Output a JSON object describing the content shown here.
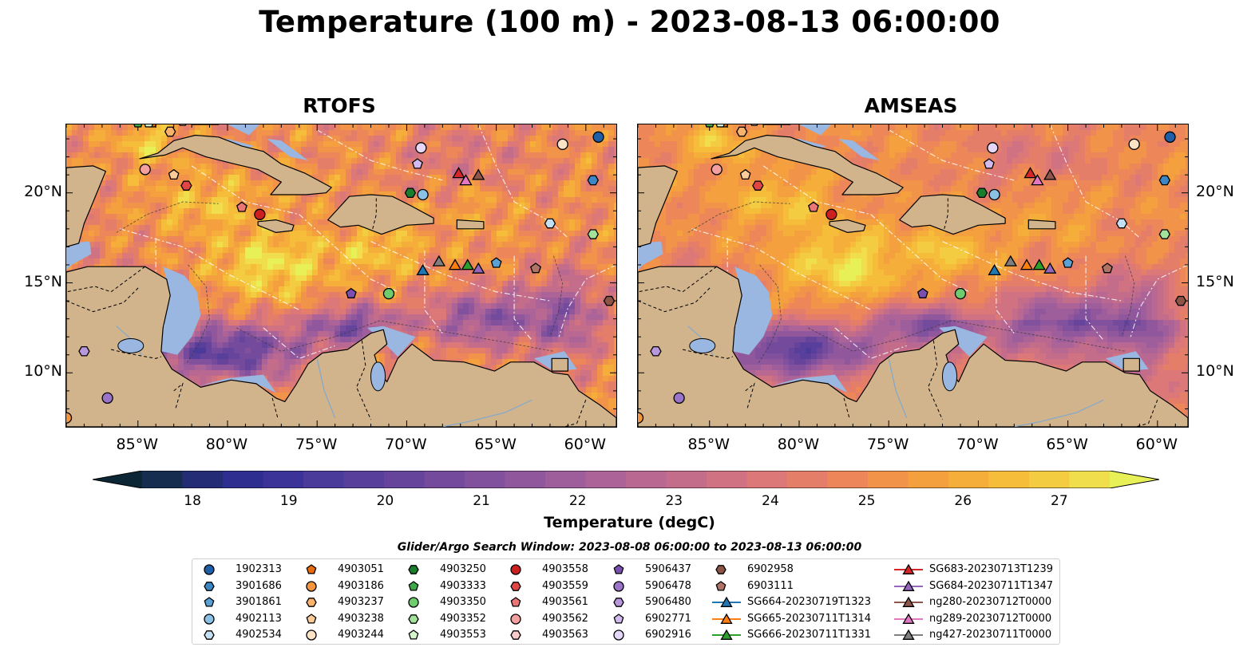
{
  "title": "Temperature (100 m) - 2023-08-13 06:00:00",
  "panels": [
    {
      "id": "rtofs",
      "title": "RTOFS"
    },
    {
      "id": "amseas",
      "title": "AMSEAS"
    }
  ],
  "axes": {
    "lon_labels": [
      "85°W",
      "80°W",
      "75°W",
      "70°W",
      "65°W",
      "60°W"
    ],
    "lat_labels": [
      "20°N",
      "15°N",
      "10°N"
    ]
  },
  "colorbar": {
    "label": "Temperature (degC)",
    "ticks": [
      "18",
      "19",
      "20",
      "21",
      "22",
      "23",
      "24",
      "25",
      "26",
      "27"
    ],
    "min": 17.5,
    "max": 27.5,
    "colors": [
      "#0c2636",
      "#172d4f",
      "#232c75",
      "#2e2e90",
      "#3b3397",
      "#4a3b9a",
      "#583f9c",
      "#66449c",
      "#744a9c",
      "#82519d",
      "#90579c",
      "#9e5e9b",
      "#ac6397",
      "#b96892",
      "#c46d8a",
      "#d07281",
      "#dc7877",
      "#e57e69",
      "#ed875a",
      "#f2934a",
      "#f5a03f",
      "#f6ae3a",
      "#f6bd3b",
      "#f4cc42",
      "#f0de4d",
      "#e8f057"
    ]
  },
  "legend_title": "Glider/Argo Search Window: 2023-08-08 06:00:00 to 2023-08-13 06:00:00",
  "legend_items": [
    {
      "label": "1902313",
      "marker": "circle",
      "color": "#1f5fa8"
    },
    {
      "label": "3901686",
      "marker": "hexagon",
      "color": "#3c86c6"
    },
    {
      "label": "3901861",
      "marker": "pentagon",
      "color": "#5aa1d6"
    },
    {
      "label": "4902113",
      "marker": "circle",
      "color": "#8cc1e6"
    },
    {
      "label": "4902534",
      "marker": "hexagon",
      "color": "#c5e0f3"
    },
    {
      "label": "4903051",
      "marker": "pentagon",
      "color": "#e86b0c"
    },
    {
      "label": "4903186",
      "marker": "circle",
      "color": "#f5963e"
    },
    {
      "label": "4903237",
      "marker": "hexagon",
      "color": "#f8b26b"
    },
    {
      "label": "4903238",
      "marker": "pentagon",
      "color": "#fbcb98"
    },
    {
      "label": "4903244",
      "marker": "circle",
      "color": "#fde3c6"
    },
    {
      "label": "4903250",
      "marker": "hexagon",
      "color": "#1a7d2c"
    },
    {
      "label": "4903333",
      "marker": "pentagon",
      "color": "#3ea84a"
    },
    {
      "label": "4903350",
      "marker": "circle",
      "color": "#6fcc6c"
    },
    {
      "label": "4903352",
      "marker": "hexagon",
      "color": "#a3e29a"
    },
    {
      "label": "4903553",
      "marker": "pentagon",
      "color": "#d3f4cc"
    },
    {
      "label": "4903558",
      "marker": "circle",
      "color": "#cc1f1f"
    },
    {
      "label": "4903559",
      "marker": "hexagon",
      "color": "#e04646"
    },
    {
      "label": "4903561",
      "marker": "pentagon",
      "color": "#ec7575"
    },
    {
      "label": "4903562",
      "marker": "circle",
      "color": "#f5a0a0"
    },
    {
      "label": "4903563",
      "marker": "hexagon",
      "color": "#fbcaca"
    },
    {
      "label": "5906437",
      "marker": "pentagon",
      "color": "#7b4fb0"
    },
    {
      "label": "5906478",
      "marker": "circle",
      "color": "#9a74c8"
    },
    {
      "label": "5906480",
      "marker": "hexagon",
      "color": "#b897dc"
    },
    {
      "label": "6902771",
      "marker": "pentagon",
      "color": "#d3baee"
    },
    {
      "label": "6902916",
      "marker": "circle",
      "color": "#e6d6f8"
    },
    {
      "label": "6902958",
      "marker": "hexagon",
      "color": "#8c5347"
    },
    {
      "label": "6903111",
      "marker": "pentagon",
      "color": "#b07466"
    },
    {
      "label": "SG664-20230719T1323",
      "marker": "triangle",
      "color": "#1f77b4",
      "line": true
    },
    {
      "label": "SG665-20230711T1314",
      "marker": "triangle",
      "color": "#ff7f0e",
      "line": true
    },
    {
      "label": "SG666-20230711T1331",
      "marker": "triangle",
      "color": "#2ca02c",
      "line": true
    },
    {
      "label": "SG683-20230713T1239",
      "marker": "triangle",
      "color": "#d62728",
      "line": true
    },
    {
      "label": "SG684-20230711T1347",
      "marker": "triangle",
      "color": "#9467bd",
      "line": true
    },
    {
      "label": "ng280-20230712T0000",
      "marker": "triangle",
      "color": "#8c564b",
      "line": true
    },
    {
      "label": "ng289-20230712T0000",
      "marker": "triangle",
      "color": "#e377c2",
      "line": true
    },
    {
      "label": "ng427-20230711T0000",
      "marker": "triangle",
      "color": "#7f7f7f",
      "line": true
    }
  ],
  "observations": [
    {
      "id": "1902313",
      "lon": -59.3,
      "lat": 23.1
    },
    {
      "id": "3901686",
      "lon": -59.6,
      "lat": 20.7
    },
    {
      "id": "4902113",
      "lon": -69.1,
      "lat": 19.9
    },
    {
      "id": "4902534",
      "lon": -62.0,
      "lat": 18.3
    },
    {
      "id": "3901861",
      "lon": -65.0,
      "lat": 16.1
    },
    {
      "id": "4903051",
      "lon": -84.2,
      "lat": 23.9
    },
    {
      "id": "4903186",
      "lon": -89.0,
      "lat": 7.5
    },
    {
      "id": "4903237",
      "lon": -83.2,
      "lat": 23.4
    },
    {
      "id": "4903238",
      "lon": -83.0,
      "lat": 21.0
    },
    {
      "id": "4903244",
      "lon": -61.3,
      "lat": 22.7
    },
    {
      "id": "4903250",
      "lon": -69.8,
      "lat": 20.0
    },
    {
      "id": "4903333",
      "lon": -85.0,
      "lat": 23.9
    },
    {
      "id": "4903350",
      "lon": -71.0,
      "lat": 14.4
    },
    {
      "id": "4903352",
      "lon": -59.6,
      "lat": 17.7
    },
    {
      "id": "4903553",
      "lon": -84.4,
      "lat": 23.9
    },
    {
      "id": "4903558",
      "lon": -78.2,
      "lat": 18.8
    },
    {
      "id": "4903559",
      "lon": -82.3,
      "lat": 20.4
    },
    {
      "id": "4903561",
      "lon": -79.2,
      "lat": 19.2
    },
    {
      "id": "4903562",
      "lon": -84.6,
      "lat": 21.3
    },
    {
      "id": "4903563",
      "lon": -82.5,
      "lat": 24.0
    },
    {
      "id": "5906437",
      "lon": -73.1,
      "lat": 14.4
    },
    {
      "id": "5906478",
      "lon": -86.7,
      "lat": 8.6
    },
    {
      "id": "5906480",
      "lon": -88.0,
      "lat": 11.2
    },
    {
      "id": "6902771",
      "lon": -69.4,
      "lat": 21.6
    },
    {
      "id": "6902916",
      "lon": -69.2,
      "lat": 22.5
    },
    {
      "id": "6902958",
      "lon": -58.7,
      "lat": 14.0
    },
    {
      "id": "6903111",
      "lon": -62.8,
      "lat": 15.8
    },
    {
      "id": "SG664-20230719T1323",
      "lon": -69.1,
      "lat": 15.7
    },
    {
      "id": "SG665-20230711T1314",
      "lon": -67.3,
      "lat": 16.0
    },
    {
      "id": "SG666-20230711T1331",
      "lon": -66.6,
      "lat": 16.0
    },
    {
      "id": "SG683-20230713T1239",
      "lon": -67.1,
      "lat": 21.1
    },
    {
      "id": "SG684-20230711T1347",
      "lon": -66.0,
      "lat": 15.8
    },
    {
      "id": "ng280-20230712T0000",
      "lon": -66.0,
      "lat": 21.0
    },
    {
      "id": "ng289-20230712T0000",
      "lon": -66.7,
      "lat": 20.7
    },
    {
      "id": "ng427-20230711T0000",
      "lon": -68.2,
      "lat": 16.2
    }
  ],
  "map_extent": {
    "lon_min": -89.0,
    "lon_max": -58.3,
    "lat_min": 7.0,
    "lat_max": 23.8
  },
  "colors": {
    "land": "#d2b48c",
    "shallow": "#99b7e1",
    "coast": "#000000"
  }
}
